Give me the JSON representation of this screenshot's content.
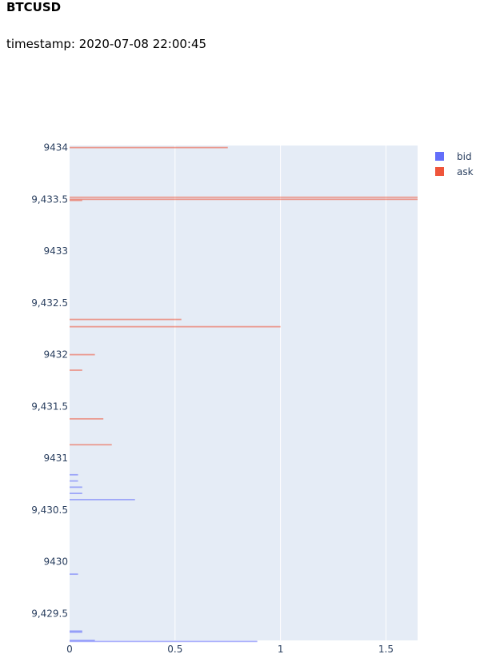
{
  "header": {
    "symbol": "BTCUSD",
    "timestamp_label": "timestamp",
    "timestamp_value": "2020-07-08 22:00:45"
  },
  "colors": {
    "bid": "#636efa",
    "ask": "#ef553b",
    "plot_bg": "#e5ecf6",
    "grid": "#ffffff",
    "tick_text": "#2a3f5f"
  },
  "chart_data": {
    "type": "bar",
    "orientation": "horizontal",
    "grid": true,
    "legend_placement": "top-right",
    "xlabel": "",
    "ylabel": "",
    "xlim": [
      0,
      1.65
    ],
    "ylim": [
      9429.24,
      9434.02
    ],
    "x_ticks": [
      0,
      0.5,
      1,
      1.5
    ],
    "x_tick_labels": [
      "0",
      "0.5",
      "1",
      "1.5"
    ],
    "y_ticks": [
      9429.5,
      9430,
      9430.5,
      9431,
      9431.5,
      9432,
      9432.5,
      9433,
      9433.5,
      9434
    ],
    "y_tick_labels": [
      "9,429.5",
      "9430",
      "9,430.5",
      "9431",
      "9,431.5",
      "9432",
      "9,432.5",
      "9433",
      "9,433.5",
      "9434"
    ],
    "series": [
      {
        "name": "bid",
        "price": [
          9430.6,
          9430.66,
          9430.72,
          9430.78,
          9430.84,
          9429.88,
          9429.33,
          9429.32,
          9429.24,
          9429.23
        ],
        "size": [
          0.31,
          0.06,
          0.06,
          0.04,
          0.04,
          0.04,
          0.06,
          0.06,
          0.12,
          0.89
        ]
      },
      {
        "name": "ask",
        "price": [
          9431.13,
          9431.38,
          9431.85,
          9432.0,
          9432.27,
          9432.34,
          9433.49,
          9433.5,
          9433.52,
          9434.0
        ],
        "size": [
          0.2,
          0.16,
          0.06,
          0.12,
          1.0,
          0.53,
          0.06,
          1.65,
          1.65,
          0.75
        ]
      }
    ]
  }
}
